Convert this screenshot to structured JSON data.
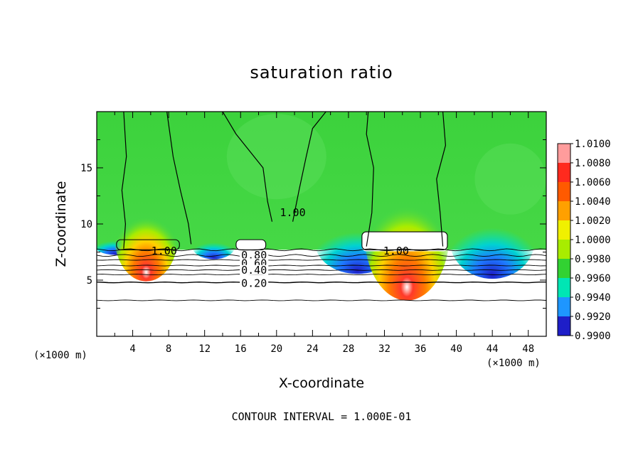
{
  "chart_data": {
    "type": "heatmap",
    "title": "saturation ratio",
    "xlabel": "X-coordinate",
    "ylabel": "Z-coordinate",
    "x_unit": "(×1000 m)",
    "y_unit": "(×1000 m)",
    "xlim": [
      0,
      50
    ],
    "ylim": [
      0,
      20
    ],
    "x_ticks": [
      4,
      8,
      12,
      16,
      20,
      24,
      28,
      32,
      36,
      40,
      44,
      48
    ],
    "y_ticks": [
      5,
      10,
      15
    ],
    "footer": "CONTOUR INTERVAL = 1.000E-01",
    "colorbar": {
      "labels": [
        "1.0100",
        "1.0080",
        "1.0060",
        "1.0040",
        "1.0020",
        "1.0000",
        "0.9980",
        "0.9960",
        "0.9940",
        "0.9920",
        "0.9900"
      ],
      "colors": [
        "#ff9c9c",
        "#ff2a1e",
        "#ff5a00",
        "#ffa000",
        "#f0f000",
        "#a8ec00",
        "#32d232",
        "#00e6b4",
        "#1e96ff",
        "#1e1ec8",
        "#7800a0"
      ]
    },
    "contour_labels": [
      {
        "text": "1.00",
        "x": 7.5,
        "y": 7.6
      },
      {
        "text": "1.00",
        "x": 21.8,
        "y": 11.0
      },
      {
        "text": "1.00",
        "x": 33.3,
        "y": 7.6
      },
      {
        "text": "0.80",
        "x": 17.5,
        "y": 7.2
      },
      {
        "text": "0.60",
        "x": 17.5,
        "y": 6.5
      },
      {
        "text": "0.40",
        "x": 17.5,
        "y": 5.9
      },
      {
        "text": "0.20",
        "x": 17.5,
        "y": 4.7
      }
    ],
    "horizontal_contours_z": [
      7.7,
      7.2,
      6.8,
      6.3,
      5.9,
      5.5,
      4.8,
      3.2
    ]
  }
}
